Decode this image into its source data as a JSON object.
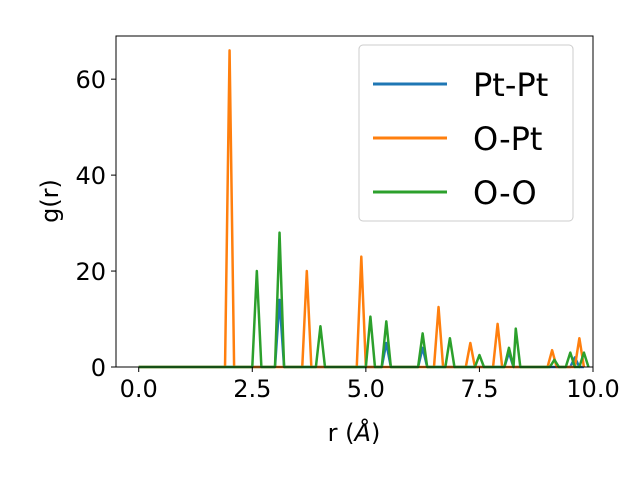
{
  "chart_data": {
    "type": "line",
    "xlabel": "r (",
    "xlabel_symbol": "Å",
    "xlabel_close": ")",
    "ylabel": "g(r)",
    "xlim": [
      -0.5,
      10.0
    ],
    "ylim": [
      0,
      69
    ],
    "xticks": [
      {
        "value": 0.0,
        "label": "0.0"
      },
      {
        "value": 2.5,
        "label": "2.5"
      },
      {
        "value": 5.0,
        "label": "5.0"
      },
      {
        "value": 7.5,
        "label": "7.5"
      },
      {
        "value": 10.0,
        "label": "10.0"
      }
    ],
    "yticks": [
      {
        "value": 0,
        "label": "0"
      },
      {
        "value": 20,
        "label": "20"
      },
      {
        "value": 40,
        "label": "40"
      },
      {
        "value": 60,
        "label": "60"
      }
    ],
    "legend_position": "top-right",
    "series": [
      {
        "name": "Pt-Pt",
        "color": "#1f77b4",
        "points": [
          [
            0.0,
            0
          ],
          [
            3.0,
            0
          ],
          [
            3.1,
            14
          ],
          [
            3.2,
            0
          ],
          [
            5.35,
            0
          ],
          [
            5.45,
            5
          ],
          [
            5.55,
            0
          ],
          [
            6.15,
            0
          ],
          [
            6.25,
            4
          ],
          [
            6.35,
            0
          ],
          [
            8.05,
            0
          ],
          [
            8.15,
            3
          ],
          [
            8.25,
            0
          ],
          [
            9.5,
            0
          ],
          [
            9.6,
            2
          ],
          [
            9.7,
            0
          ],
          [
            9.8,
            0
          ]
        ]
      },
      {
        "name": "O-Pt",
        "color": "#ff7f0e",
        "points": [
          [
            0.0,
            0
          ],
          [
            1.9,
            0
          ],
          [
            2.0,
            66
          ],
          [
            2.1,
            0
          ],
          [
            3.6,
            0
          ],
          [
            3.7,
            20
          ],
          [
            3.8,
            0
          ],
          [
            4.8,
            0
          ],
          [
            4.9,
            23
          ],
          [
            5.0,
            0
          ],
          [
            6.5,
            0
          ],
          [
            6.6,
            12.5
          ],
          [
            6.7,
            0
          ],
          [
            7.2,
            0
          ],
          [
            7.3,
            5
          ],
          [
            7.4,
            0
          ],
          [
            7.8,
            0
          ],
          [
            7.9,
            9
          ],
          [
            8.0,
            0
          ],
          [
            9.0,
            0
          ],
          [
            9.1,
            3.5
          ],
          [
            9.2,
            0
          ],
          [
            9.6,
            0
          ],
          [
            9.7,
            6
          ],
          [
            9.8,
            0
          ]
        ]
      },
      {
        "name": "O-O",
        "color": "#2ca02c",
        "points": [
          [
            0.0,
            0
          ],
          [
            2.5,
            0
          ],
          [
            2.6,
            20
          ],
          [
            2.7,
            0
          ],
          [
            3.0,
            0
          ],
          [
            3.1,
            28
          ],
          [
            3.2,
            0
          ],
          [
            3.9,
            0
          ],
          [
            4.0,
            8.5
          ],
          [
            4.1,
            0
          ],
          [
            5.0,
            0
          ],
          [
            5.1,
            10.5
          ],
          [
            5.2,
            0
          ],
          [
            5.35,
            0
          ],
          [
            5.45,
            9.5
          ],
          [
            5.55,
            0
          ],
          [
            6.15,
            0
          ],
          [
            6.25,
            7
          ],
          [
            6.35,
            0
          ],
          [
            6.75,
            0
          ],
          [
            6.85,
            6
          ],
          [
            6.95,
            0
          ],
          [
            7.4,
            0
          ],
          [
            7.5,
            2.5
          ],
          [
            7.6,
            0
          ],
          [
            8.05,
            0
          ],
          [
            8.15,
            4
          ],
          [
            8.25,
            0
          ],
          [
            8.3,
            8
          ],
          [
            8.4,
            0
          ],
          [
            9.05,
            0
          ],
          [
            9.15,
            1.5
          ],
          [
            9.25,
            0
          ],
          [
            9.4,
            0
          ],
          [
            9.5,
            3
          ],
          [
            9.6,
            0
          ],
          [
            9.7,
            0
          ],
          [
            9.8,
            3
          ],
          [
            9.9,
            0
          ]
        ]
      }
    ]
  }
}
